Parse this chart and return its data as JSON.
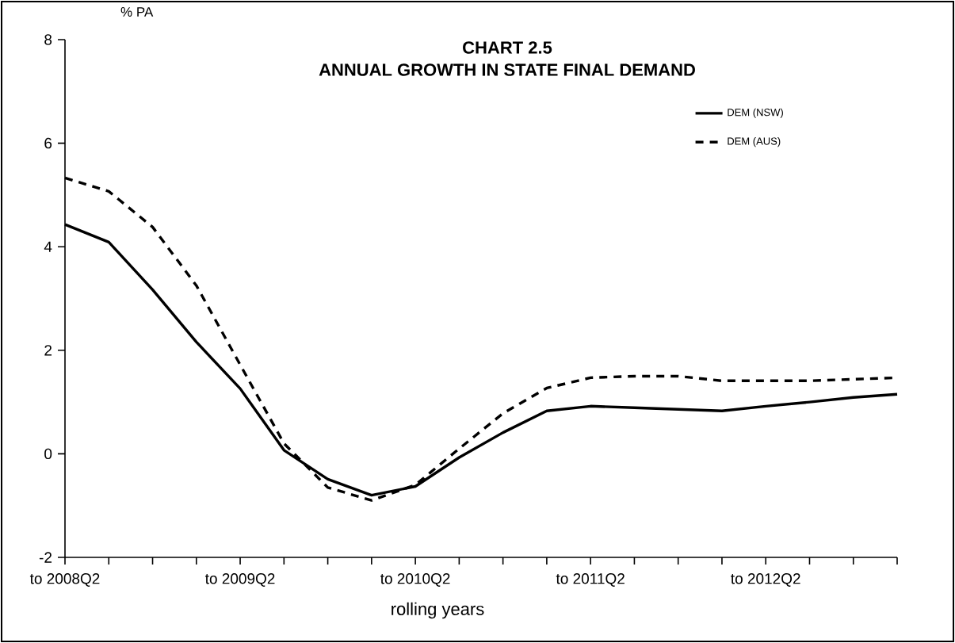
{
  "chart_data": {
    "type": "line",
    "title": "CHART 2.5",
    "subtitle": "ANNUAL GROWTH IN STATE FINAL DEMAND",
    "annotations": [
      "% PA"
    ],
    "xlabel": "rolling years",
    "categories": [
      "to 2008Q2",
      null,
      null,
      null,
      "to 2009Q2",
      null,
      null,
      null,
      "to 2010Q2",
      null,
      null,
      null,
      "to 2011Q2",
      null,
      null,
      null,
      "to 2012Q2",
      null,
      null,
      null
    ],
    "series": [
      {
        "name": "DEM (NSW)",
        "color": "#000000",
        "line_style": "solid",
        "values": [
          4.43,
          4.09,
          3.17,
          2.16,
          1.26,
          0.07,
          -0.49,
          -0.8,
          -0.63,
          -0.07,
          0.41,
          0.83,
          0.92,
          0.89,
          0.86,
          0.83,
          0.92,
          1.0,
          1.09,
          1.15
        ]
      },
      {
        "name": "DEM (AUS)",
        "color": "#000000",
        "line_style": "dashed",
        "values": [
          5.33,
          5.07,
          4.38,
          3.25,
          1.72,
          0.2,
          -0.65,
          -0.9,
          -0.6,
          0.1,
          0.78,
          1.27,
          1.47,
          1.5,
          1.5,
          1.41,
          1.41,
          1.41,
          1.44,
          1.47
        ]
      }
    ],
    "ylim": [
      -2,
      8
    ],
    "yticks": [
      -2,
      0,
      2,
      4,
      6,
      8
    ],
    "grid": false,
    "legend": "top right"
  }
}
